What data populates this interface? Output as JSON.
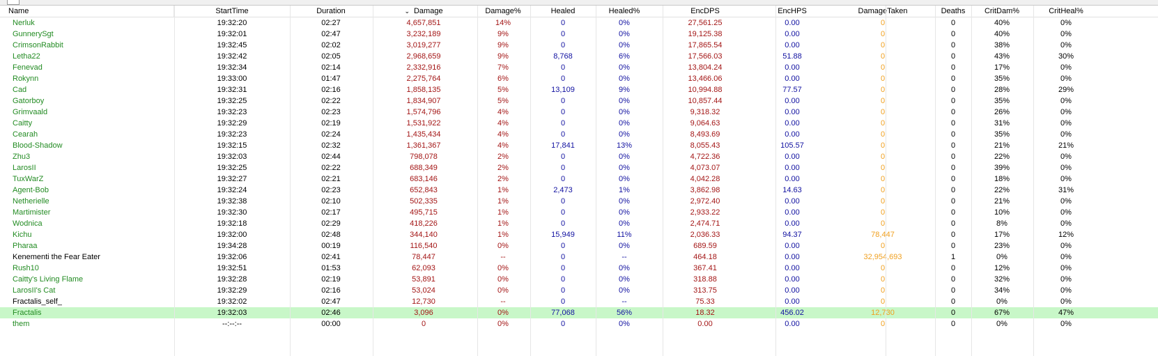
{
  "colors": {
    "name_player": "#228b22",
    "name_other": "#000000",
    "damage": "#a31515",
    "healing": "#1010a0",
    "taken": "#f0a020",
    "selected_row": "#c8f7c8"
  },
  "table": {
    "headers": {
      "name": "Name",
      "start": "StartTime",
      "duration": "Duration",
      "damage": "Damage",
      "damage_pct": "Damage%",
      "healed": "Healed",
      "healed_pct": "Healed%",
      "encdps": "EncDPS",
      "enchps": "EncHPS",
      "taken": "DamageTaken",
      "deaths": "Deaths",
      "critdam": "CritDam%",
      "critheal": "CritHeal%"
    },
    "sort_icon": "chevron-down-icon",
    "rows": [
      {
        "name": "Nerluk",
        "start": "19:32:20",
        "duration": "02:27",
        "damage": "4,657,851",
        "damage_pct": "14%",
        "healed": "0",
        "healed_pct": "0%",
        "encdps": "27,561.25",
        "enchps": "0.00",
        "taken": "0",
        "deaths": "0",
        "critdam": "40%",
        "critheal": "0%",
        "type": "player"
      },
      {
        "name": "GunnerySgt",
        "start": "19:32:01",
        "duration": "02:47",
        "damage": "3,232,189",
        "damage_pct": "9%",
        "healed": "0",
        "healed_pct": "0%",
        "encdps": "19,125.38",
        "enchps": "0.00",
        "taken": "0",
        "deaths": "0",
        "critdam": "40%",
        "critheal": "0%",
        "type": "player"
      },
      {
        "name": "CrimsonRabbit",
        "start": "19:32:45",
        "duration": "02:02",
        "damage": "3,019,277",
        "damage_pct": "9%",
        "healed": "0",
        "healed_pct": "0%",
        "encdps": "17,865.54",
        "enchps": "0.00",
        "taken": "0",
        "deaths": "0",
        "critdam": "38%",
        "critheal": "0%",
        "type": "player"
      },
      {
        "name": "Letha22",
        "start": "19:32:42",
        "duration": "02:05",
        "damage": "2,968,659",
        "damage_pct": "9%",
        "healed": "8,768",
        "healed_pct": "6%",
        "encdps": "17,566.03",
        "enchps": "51.88",
        "taken": "0",
        "deaths": "0",
        "critdam": "43%",
        "critheal": "30%",
        "type": "player"
      },
      {
        "name": "Fenevad",
        "start": "19:32:34",
        "duration": "02:14",
        "damage": "2,332,916",
        "damage_pct": "7%",
        "healed": "0",
        "healed_pct": "0%",
        "encdps": "13,804.24",
        "enchps": "0.00",
        "taken": "0",
        "deaths": "0",
        "critdam": "17%",
        "critheal": "0%",
        "type": "player"
      },
      {
        "name": "Rokynn",
        "start": "19:33:00",
        "duration": "01:47",
        "damage": "2,275,764",
        "damage_pct": "6%",
        "healed": "0",
        "healed_pct": "0%",
        "encdps": "13,466.06",
        "enchps": "0.00",
        "taken": "0",
        "deaths": "0",
        "critdam": "35%",
        "critheal": "0%",
        "type": "player"
      },
      {
        "name": "Cad",
        "start": "19:32:31",
        "duration": "02:16",
        "damage": "1,858,135",
        "damage_pct": "5%",
        "healed": "13,109",
        "healed_pct": "9%",
        "encdps": "10,994.88",
        "enchps": "77.57",
        "taken": "0",
        "deaths": "0",
        "critdam": "28%",
        "critheal": "29%",
        "type": "player"
      },
      {
        "name": "Gatorboy",
        "start": "19:32:25",
        "duration": "02:22",
        "damage": "1,834,907",
        "damage_pct": "5%",
        "healed": "0",
        "healed_pct": "0%",
        "encdps": "10,857.44",
        "enchps": "0.00",
        "taken": "0",
        "deaths": "0",
        "critdam": "35%",
        "critheal": "0%",
        "type": "player"
      },
      {
        "name": "Grimvaald",
        "start": "19:32:23",
        "duration": "02:23",
        "damage": "1,574,796",
        "damage_pct": "4%",
        "healed": "0",
        "healed_pct": "0%",
        "encdps": "9,318.32",
        "enchps": "0.00",
        "taken": "0",
        "deaths": "0",
        "critdam": "26%",
        "critheal": "0%",
        "type": "player"
      },
      {
        "name": "Caitty",
        "start": "19:32:29",
        "duration": "02:19",
        "damage": "1,531,922",
        "damage_pct": "4%",
        "healed": "0",
        "healed_pct": "0%",
        "encdps": "9,064.63",
        "enchps": "0.00",
        "taken": "0",
        "deaths": "0",
        "critdam": "31%",
        "critheal": "0%",
        "type": "player"
      },
      {
        "name": "Cearah",
        "start": "19:32:23",
        "duration": "02:24",
        "damage": "1,435,434",
        "damage_pct": "4%",
        "healed": "0",
        "healed_pct": "0%",
        "encdps": "8,493.69",
        "enchps": "0.00",
        "taken": "0",
        "deaths": "0",
        "critdam": "35%",
        "critheal": "0%",
        "type": "player"
      },
      {
        "name": "Blood-Shadow",
        "start": "19:32:15",
        "duration": "02:32",
        "damage": "1,361,367",
        "damage_pct": "4%",
        "healed": "17,841",
        "healed_pct": "13%",
        "encdps": "8,055.43",
        "enchps": "105.57",
        "taken": "0",
        "deaths": "0",
        "critdam": "21%",
        "critheal": "21%",
        "type": "player"
      },
      {
        "name": "Zhu3",
        "start": "19:32:03",
        "duration": "02:44",
        "damage": "798,078",
        "damage_pct": "2%",
        "healed": "0",
        "healed_pct": "0%",
        "encdps": "4,722.36",
        "enchps": "0.00",
        "taken": "0",
        "deaths": "0",
        "critdam": "22%",
        "critheal": "0%",
        "type": "player"
      },
      {
        "name": "LarosII",
        "start": "19:32:25",
        "duration": "02:22",
        "damage": "688,349",
        "damage_pct": "2%",
        "healed": "0",
        "healed_pct": "0%",
        "encdps": "4,073.07",
        "enchps": "0.00",
        "taken": "0",
        "deaths": "0",
        "critdam": "39%",
        "critheal": "0%",
        "type": "player"
      },
      {
        "name": "TuxWarZ",
        "start": "19:32:27",
        "duration": "02:21",
        "damage": "683,146",
        "damage_pct": "2%",
        "healed": "0",
        "healed_pct": "0%",
        "encdps": "4,042.28",
        "enchps": "0.00",
        "taken": "0",
        "deaths": "0",
        "critdam": "18%",
        "critheal": "0%",
        "type": "player"
      },
      {
        "name": "Agent-Bob",
        "start": "19:32:24",
        "duration": "02:23",
        "damage": "652,843",
        "damage_pct": "1%",
        "healed": "2,473",
        "healed_pct": "1%",
        "encdps": "3,862.98",
        "enchps": "14.63",
        "taken": "0",
        "deaths": "0",
        "critdam": "22%",
        "critheal": "31%",
        "type": "player"
      },
      {
        "name": "Netherielle",
        "start": "19:32:38",
        "duration": "02:10",
        "damage": "502,335",
        "damage_pct": "1%",
        "healed": "0",
        "healed_pct": "0%",
        "encdps": "2,972.40",
        "enchps": "0.00",
        "taken": "0",
        "deaths": "0",
        "critdam": "21%",
        "critheal": "0%",
        "type": "player"
      },
      {
        "name": "Martimister",
        "start": "19:32:30",
        "duration": "02:17",
        "damage": "495,715",
        "damage_pct": "1%",
        "healed": "0",
        "healed_pct": "0%",
        "encdps": "2,933.22",
        "enchps": "0.00",
        "taken": "0",
        "deaths": "0",
        "critdam": "10%",
        "critheal": "0%",
        "type": "player"
      },
      {
        "name": "Wodnica",
        "start": "19:32:18",
        "duration": "02:29",
        "damage": "418,226",
        "damage_pct": "1%",
        "healed": "0",
        "healed_pct": "0%",
        "encdps": "2,474.71",
        "enchps": "0.00",
        "taken": "0",
        "deaths": "0",
        "critdam": "8%",
        "critheal": "0%",
        "type": "player"
      },
      {
        "name": "Kichu",
        "start": "19:32:00",
        "duration": "02:48",
        "damage": "344,140",
        "damage_pct": "1%",
        "healed": "15,949",
        "healed_pct": "11%",
        "encdps": "2,036.33",
        "enchps": "94.37",
        "taken": "78,447",
        "deaths": "0",
        "critdam": "17%",
        "critheal": "12%",
        "type": "player"
      },
      {
        "name": "Pharaa",
        "start": "19:34:28",
        "duration": "00:19",
        "damage": "116,540",
        "damage_pct": "0%",
        "healed": "0",
        "healed_pct": "0%",
        "encdps": "689.59",
        "enchps": "0.00",
        "taken": "0",
        "deaths": "0",
        "critdam": "23%",
        "critheal": "0%",
        "type": "player"
      },
      {
        "name": "Kenementi the Fear Eater",
        "start": "19:32:06",
        "duration": "02:41",
        "damage": "78,447",
        "damage_pct": "--",
        "healed": "0",
        "healed_pct": "--",
        "encdps": "464.18",
        "enchps": "0.00",
        "taken": "32,954,693",
        "deaths": "1",
        "critdam": "0%",
        "critheal": "0%",
        "type": "other"
      },
      {
        "name": "Rush10",
        "start": "19:32:51",
        "duration": "01:53",
        "damage": "62,093",
        "damage_pct": "0%",
        "healed": "0",
        "healed_pct": "0%",
        "encdps": "367.41",
        "enchps": "0.00",
        "taken": "0",
        "deaths": "0",
        "critdam": "12%",
        "critheal": "0%",
        "type": "player"
      },
      {
        "name": "Caitty's Living Flame",
        "start": "19:32:28",
        "duration": "02:19",
        "damage": "53,891",
        "damage_pct": "0%",
        "healed": "0",
        "healed_pct": "0%",
        "encdps": "318.88",
        "enchps": "0.00",
        "taken": "0",
        "deaths": "0",
        "critdam": "32%",
        "critheal": "0%",
        "type": "player"
      },
      {
        "name": "LarosII's Cat",
        "start": "19:32:29",
        "duration": "02:16",
        "damage": "53,024",
        "damage_pct": "0%",
        "healed": "0",
        "healed_pct": "0%",
        "encdps": "313.75",
        "enchps": "0.00",
        "taken": "0",
        "deaths": "0",
        "critdam": "34%",
        "critheal": "0%",
        "type": "player"
      },
      {
        "name": "Fractalis_self_",
        "start": "19:32:02",
        "duration": "02:47",
        "damage": "12,730",
        "damage_pct": "--",
        "healed": "0",
        "healed_pct": "--",
        "encdps": "75.33",
        "enchps": "0.00",
        "taken": "0",
        "deaths": "0",
        "critdam": "0%",
        "critheal": "0%",
        "type": "other"
      },
      {
        "name": "Fractalis",
        "start": "19:32:03",
        "duration": "02:46",
        "damage": "3,096",
        "damage_pct": "0%",
        "healed": "77,068",
        "healed_pct": "56%",
        "encdps": "18.32",
        "enchps": "456.02",
        "taken": "12,730",
        "deaths": "0",
        "critdam": "67%",
        "critheal": "47%",
        "type": "player",
        "selected": true
      },
      {
        "name": "them",
        "start": "--:--:--",
        "duration": "00:00",
        "damage": "0",
        "damage_pct": "0%",
        "healed": "0",
        "healed_pct": "0%",
        "encdps": "0.00",
        "enchps": "0.00",
        "taken": "0",
        "deaths": "0",
        "critdam": "0%",
        "critheal": "0%",
        "type": "player"
      }
    ]
  }
}
